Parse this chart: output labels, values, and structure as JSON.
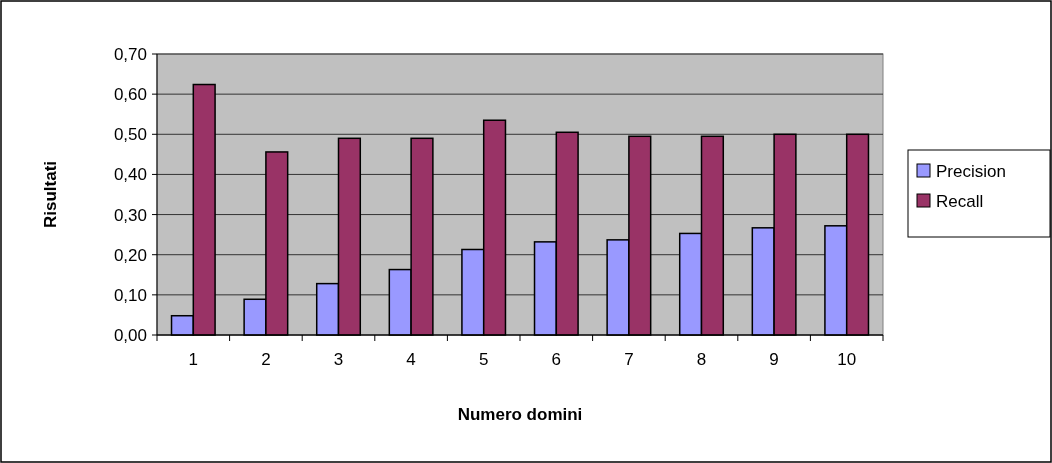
{
  "chart_data": {
    "type": "bar",
    "xlabel": "Numero domini",
    "ylabel": "Risultati",
    "categories": [
      "1",
      "2",
      "3",
      "4",
      "5",
      "6",
      "7",
      "8",
      "9",
      "10"
    ],
    "series": [
      {
        "name": "Precision",
        "color": "#9999ff",
        "values": [
          0.048,
          0.089,
          0.128,
          0.163,
          0.213,
          0.232,
          0.237,
          0.253,
          0.267,
          0.272
        ]
      },
      {
        "name": "Recall",
        "color": "#993366",
        "values": [
          0.624,
          0.456,
          0.49,
          0.49,
          0.535,
          0.505,
          0.495,
          0.495,
          0.5,
          0.5
        ]
      }
    ],
    "ylim": [
      0,
      0.7
    ],
    "yticks": [
      {
        "value": 0,
        "label": "0,00"
      },
      {
        "value": 0.1,
        "label": "0,10"
      },
      {
        "value": 0.2,
        "label": "0,20"
      },
      {
        "value": 0.3,
        "label": "0,30"
      },
      {
        "value": 0.4,
        "label": "0,40"
      },
      {
        "value": 0.5,
        "label": "0,50"
      },
      {
        "value": 0.6,
        "label": "0,60"
      },
      {
        "value": 0.7,
        "label": "0,70"
      }
    ],
    "grid": "y",
    "legend": "right"
  }
}
